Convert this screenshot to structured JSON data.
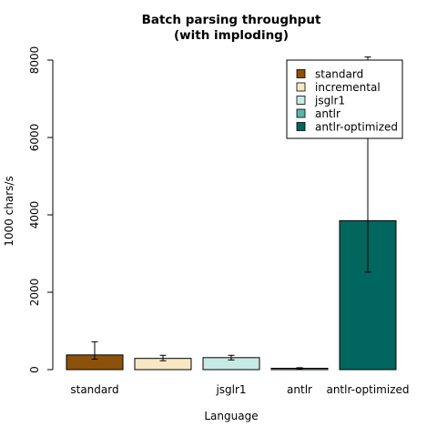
{
  "chart_data": {
    "type": "bar",
    "title_line1": "Batch parsing throughput",
    "title_line2": "(with imploding)",
    "xlabel": "Language",
    "ylabel": "1000 chars/s",
    "ylim": [
      0,
      8000
    ],
    "yticks": [
      "0",
      "2000",
      "4000",
      "6000",
      "8000"
    ],
    "categories": [
      "standard",
      "incremental",
      "jsglr1",
      "antlr",
      "antlr-optimized"
    ],
    "visible_tick_labels": [
      "standard",
      "",
      "jsglr1",
      "antlr",
      "antlr-optimized"
    ],
    "values": [
      380,
      290,
      310,
      35,
      3850
    ],
    "error_low": [
      270,
      230,
      250,
      20,
      2520
    ],
    "error_high": [
      720,
      370,
      370,
      50,
      8080
    ],
    "colors": [
      "#8C510A",
      "#F6E8C3",
      "#C7EAE5",
      "#5AB4AC",
      "#01665E"
    ],
    "legend": {
      "placement": "top-right",
      "entries": [
        "standard",
        "incremental",
        "jsglr1",
        "antlr",
        "antlr-optimized"
      ]
    }
  }
}
